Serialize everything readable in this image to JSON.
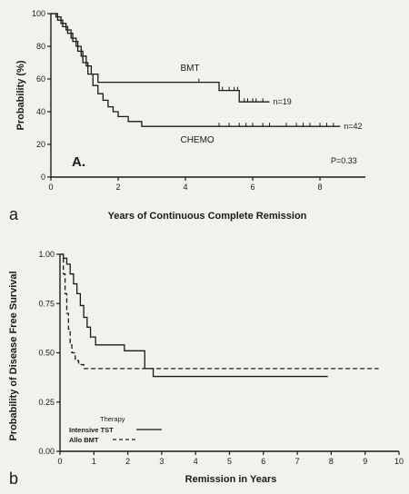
{
  "chart_data": [
    {
      "type": "line",
      "panel_letter": "a",
      "inset_label": "A.",
      "xlabel": "Years of Continuous Complete Remission",
      "ylabel": "Probability (%)",
      "xlim": [
        0,
        9
      ],
      "ylim": [
        0,
        100
      ],
      "x_ticks": [
        0,
        2,
        4,
        6,
        8
      ],
      "y_ticks": [
        0,
        20,
        40,
        60,
        80,
        100
      ],
      "annotation": "P=0.33",
      "series": [
        {
          "name": "BMT",
          "count_label": "n=19",
          "x": [
            0,
            0.15,
            0.3,
            0.45,
            0.6,
            0.75,
            0.9,
            1.05,
            1.2,
            1.4,
            5.0,
            5.6,
            6.5
          ],
          "y": [
            100,
            98,
            94,
            90,
            85,
            80,
            74,
            68,
            63,
            58,
            53,
            46,
            46
          ],
          "censored_x": [
            4.4,
            5.1,
            5.3,
            5.45,
            5.55,
            5.75,
            5.85,
            6.0,
            6.1,
            6.3
          ]
        },
        {
          "name": "CHEMO",
          "count_label": "n=42",
          "x": [
            0,
            0.2,
            0.35,
            0.5,
            0.65,
            0.8,
            0.95,
            1.1,
            1.25,
            1.4,
            1.55,
            1.7,
            1.85,
            2.0,
            2.3,
            2.7,
            8.6
          ],
          "y": [
            100,
            96,
            92,
            88,
            83,
            77,
            70,
            63,
            56,
            51,
            47,
            43,
            40,
            37,
            34,
            31,
            31
          ],
          "censored_x": [
            5.0,
            5.3,
            5.6,
            5.8,
            6.0,
            6.3,
            6.5,
            7.0,
            7.3,
            7.5,
            7.7,
            8.0,
            8.2,
            8.4
          ]
        }
      ]
    },
    {
      "type": "line",
      "panel_letter": "b",
      "xlabel": "Remission in Years",
      "ylabel": "Probability of Disease Free Survival",
      "xlim": [
        0,
        10
      ],
      "ylim": [
        0,
        1
      ],
      "x_ticks": [
        0,
        1,
        2,
        3,
        4,
        5,
        6,
        7,
        8,
        9,
        10
      ],
      "y_ticks": [
        0.0,
        0.25,
        0.5,
        0.75,
        1.0
      ],
      "legend": {
        "title": "Therapy",
        "placement": "lower-left"
      },
      "series": [
        {
          "name": "Intensive TST",
          "dash": "solid",
          "x": [
            0,
            0.1,
            0.2,
            0.3,
            0.4,
            0.5,
            0.6,
            0.7,
            0.8,
            0.9,
            1.05,
            1.9,
            2.5,
            2.75,
            7.9
          ],
          "y": [
            1.0,
            0.98,
            0.95,
            0.9,
            0.85,
            0.8,
            0.74,
            0.68,
            0.63,
            0.58,
            0.54,
            0.51,
            0.42,
            0.38,
            0.38
          ]
        },
        {
          "name": "Allo BMT",
          "dash": "dashed",
          "x": [
            0,
            0.1,
            0.15,
            0.2,
            0.25,
            0.3,
            0.35,
            0.45,
            0.55,
            0.7,
            9.4
          ],
          "y": [
            1.0,
            0.9,
            0.8,
            0.7,
            0.62,
            0.55,
            0.5,
            0.46,
            0.44,
            0.42,
            0.42
          ]
        }
      ]
    }
  ]
}
